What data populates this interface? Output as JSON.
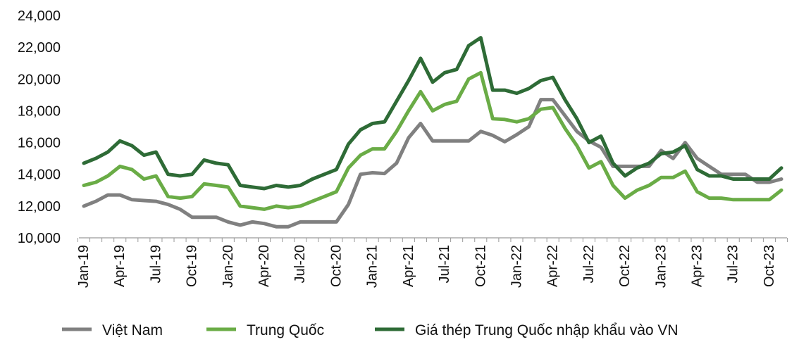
{
  "chart_data": {
    "type": "line",
    "title": "",
    "xlabel": "",
    "ylabel": "",
    "ylim": [
      10000,
      24000
    ],
    "y_ticks": [
      "10,000",
      "12,000",
      "14,000",
      "16,000",
      "18,000",
      "20,000",
      "22,000",
      "24,000"
    ],
    "x": [
      "Jan-19",
      "Feb-19",
      "Mar-19",
      "Apr-19",
      "May-19",
      "Jun-19",
      "Jul-19",
      "Aug-19",
      "Sep-19",
      "Oct-19",
      "Nov-19",
      "Dec-19",
      "Jan-20",
      "Feb-20",
      "Mar-20",
      "Apr-20",
      "May-20",
      "Jun-20",
      "Jul-20",
      "Aug-20",
      "Sep-20",
      "Oct-20",
      "Nov-20",
      "Dec-20",
      "Jan-21",
      "Feb-21",
      "Mar-21",
      "Apr-21",
      "May-21",
      "Jun-21",
      "Jul-21",
      "Aug-21",
      "Sep-21",
      "Oct-21",
      "Nov-21",
      "Dec-21",
      "Jan-22",
      "Feb-22",
      "Mar-22",
      "Apr-22",
      "May-22",
      "Jun-22",
      "Jul-22",
      "Aug-22",
      "Sep-22",
      "Oct-22",
      "Nov-22",
      "Dec-22",
      "Jan-23",
      "Feb-23",
      "Mar-23",
      "Apr-23",
      "May-23",
      "Jun-23",
      "Jul-23",
      "Aug-23",
      "Sep-23",
      "Oct-23",
      "Nov-23"
    ],
    "x_tick_labels": [
      "Jan-19",
      "Apr-19",
      "Jul-19",
      "Oct-19",
      "Jan-20",
      "Apr-20",
      "Jul-20",
      "Oct-20",
      "Jan-21",
      "Apr-21",
      "Jul-21",
      "Oct-21",
      "Jan-22",
      "Apr-22",
      "Jul-22",
      "Oct-22",
      "Jan-23",
      "Apr-23",
      "Jul-23",
      "Oct-23"
    ],
    "grid": false,
    "legend_position": "bottom",
    "series": [
      {
        "name": "Việt Nam",
        "color": "#808080",
        "values": [
          12000,
          12300,
          12700,
          12700,
          12400,
          12350,
          12300,
          12100,
          11800,
          11300,
          11300,
          11300,
          11000,
          10800,
          11000,
          10900,
          10700,
          10700,
          11000,
          11000,
          11000,
          11000,
          12100,
          14000,
          14100,
          14050,
          14700,
          16300,
          17200,
          16100,
          16100,
          16100,
          16100,
          16700,
          16450,
          16050,
          16500,
          17000,
          18700,
          18700,
          17700,
          16700,
          16100,
          15700,
          14500,
          14500,
          14500,
          14500,
          15500,
          15000,
          16000,
          15000,
          14500,
          14000,
          14000,
          14000,
          13500,
          13500,
          13700
        ]
      },
      {
        "name": "Trung Quốc",
        "color": "#6aac46",
        "values": [
          13300,
          13500,
          13900,
          14500,
          14300,
          13700,
          13900,
          12600,
          12500,
          12600,
          13400,
          13300,
          13200,
          12000,
          11900,
          11800,
          12000,
          11900,
          12000,
          12300,
          12600,
          12900,
          14400,
          15200,
          15600,
          15600,
          16700,
          18000,
          19200,
          18000,
          18400,
          18600,
          20000,
          20400,
          17500,
          17450,
          17300,
          17500,
          18100,
          18200,
          16900,
          15800,
          14400,
          14800,
          13300,
          12500,
          13000,
          13300,
          13800,
          13800,
          14200,
          12900,
          12500,
          12500,
          12400,
          12400,
          12400,
          12400,
          13000
        ]
      },
      {
        "name": "Giá thép Trung Quốc nhập khẩu vào VN",
        "color": "#2e6b36",
        "values": [
          14700,
          15000,
          15400,
          16100,
          15800,
          15200,
          15400,
          14000,
          13900,
          14000,
          14900,
          14700,
          14600,
          13300,
          13200,
          13100,
          13300,
          13200,
          13300,
          13700,
          14000,
          14300,
          15900,
          16800,
          17200,
          17300,
          18600,
          19900,
          21300,
          19800,
          20400,
          20600,
          22100,
          22600,
          19300,
          19300,
          19100,
          19400,
          19900,
          20100,
          18700,
          17500,
          16000,
          16400,
          14700,
          13900,
          14400,
          14700,
          15300,
          15400,
          15800,
          14300,
          13900,
          13900,
          13700,
          13700,
          13700,
          13700,
          14400
        ]
      }
    ]
  }
}
